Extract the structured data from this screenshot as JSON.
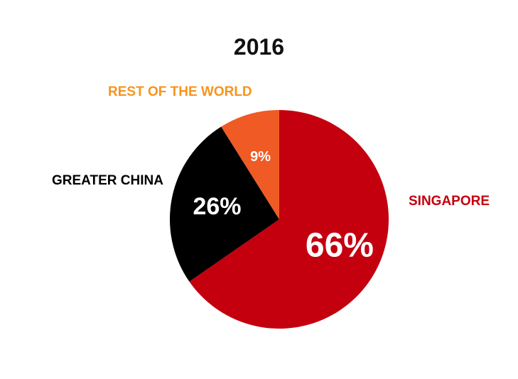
{
  "chart_data": {
    "type": "pie",
    "title": "2016",
    "slices": [
      {
        "label": "SINGAPORE",
        "value": 66,
        "display": "66%",
        "color": "#c4000f",
        "label_color": "#c4000f",
        "value_color": "#ffffff"
      },
      {
        "label": "GREATER CHINA",
        "value": 26,
        "display": "26%",
        "color": "#000000",
        "label_color": "#000000",
        "value_color": "#ffffff"
      },
      {
        "label": "REST OF THE WORLD",
        "value": 9,
        "display": "9%",
        "color": "#f05a24",
        "label_color": "#f7941d",
        "value_color": "#ffffff"
      }
    ],
    "start": "12 o'clock",
    "direction": "clockwise"
  }
}
